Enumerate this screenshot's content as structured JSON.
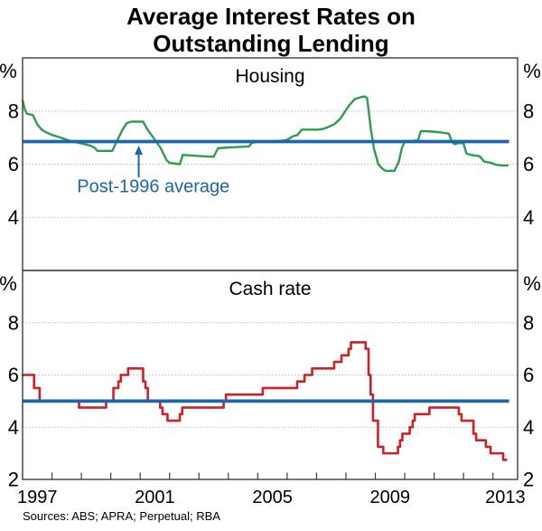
{
  "title": {
    "line1": "Average Interest Rates on",
    "line2": "Outstanding Lending"
  },
  "footer": {
    "sources": "Sources: ABS; APRA; Perpetual; RBA"
  },
  "colors": {
    "housing_line": "#2f9e48",
    "cash_line": "#cc2127",
    "average_line": "#1b67ad",
    "annotation": "#1b67ad",
    "grid": "#bdbdbd",
    "axis": "#3d3d3d",
    "text": "#000000"
  },
  "x_axis": {
    "xlim": [
      1997.0,
      2013.84
    ],
    "year_ticks": [
      1998,
      1999,
      2000,
      2001,
      2002,
      2003,
      2004,
      2005,
      2006,
      2007,
      2008,
      2009,
      2010,
      2011,
      2012,
      2013
    ],
    "labels": [
      {
        "x": 1997.5,
        "text": "1997"
      },
      {
        "x": 2001.5,
        "text": "2001"
      },
      {
        "x": 2005.5,
        "text": "2005"
      },
      {
        "x": 2009.5,
        "text": "2009"
      },
      {
        "x": 2013.42,
        "text": "2013"
      }
    ]
  },
  "chart_data": [
    {
      "type": "line",
      "title": "Housing",
      "unit_label": "%",
      "ylim": [
        2,
        10
      ],
      "yticks": [
        4,
        6,
        8
      ],
      "series": [
        {
          "id": "housing-line",
          "name": "Average interest rate on outstanding housing lending",
          "type": "line",
          "color_key": "housing_line",
          "width": 2.4,
          "points": [
            [
              1997.0,
              8.4
            ],
            [
              1997.08,
              8.05
            ],
            [
              1997.15,
              7.9
            ],
            [
              1997.35,
              7.85
            ],
            [
              1997.5,
              7.5
            ],
            [
              1997.65,
              7.3
            ],
            [
              1997.8,
              7.2
            ],
            [
              1998.0,
              7.1
            ],
            [
              1998.3,
              7.0
            ],
            [
              1998.6,
              6.88
            ],
            [
              1999.0,
              6.78
            ],
            [
              1999.3,
              6.7
            ],
            [
              1999.45,
              6.62
            ],
            [
              1999.55,
              6.5
            ],
            [
              2000.05,
              6.5
            ],
            [
              2000.2,
              6.85
            ],
            [
              2000.4,
              7.3
            ],
            [
              2000.55,
              7.55
            ],
            [
              2000.7,
              7.6
            ],
            [
              2001.1,
              7.6
            ],
            [
              2001.25,
              7.3
            ],
            [
              2001.45,
              7.0
            ],
            [
              2001.7,
              6.6
            ],
            [
              2001.9,
              6.15
            ],
            [
              2002.0,
              6.05
            ],
            [
              2002.35,
              6.0
            ],
            [
              2002.45,
              6.35
            ],
            [
              2002.7,
              6.33
            ],
            [
              2003.1,
              6.3
            ],
            [
              2003.5,
              6.28
            ],
            [
              2003.65,
              6.6
            ],
            [
              2004.0,
              6.63
            ],
            [
              2004.4,
              6.65
            ],
            [
              2004.7,
              6.67
            ],
            [
              2004.8,
              6.8
            ],
            [
              2005.0,
              6.85
            ],
            [
              2005.5,
              6.85
            ],
            [
              2005.95,
              6.9
            ],
            [
              2006.05,
              6.95
            ],
            [
              2006.2,
              7.05
            ],
            [
              2006.35,
              7.1
            ],
            [
              2006.5,
              7.3
            ],
            [
              2007.0,
              7.3
            ],
            [
              2007.2,
              7.32
            ],
            [
              2007.4,
              7.4
            ],
            [
              2007.6,
              7.5
            ],
            [
              2007.8,
              7.7
            ],
            [
              2007.95,
              7.95
            ],
            [
              2008.1,
              8.2
            ],
            [
              2008.3,
              8.45
            ],
            [
              2008.5,
              8.52
            ],
            [
              2008.62,
              8.55
            ],
            [
              2008.72,
              8.5
            ],
            [
              2008.85,
              7.3
            ],
            [
              2008.95,
              6.6
            ],
            [
              2009.1,
              6.0
            ],
            [
              2009.25,
              5.82
            ],
            [
              2009.35,
              5.75
            ],
            [
              2009.65,
              5.75
            ],
            [
              2009.8,
              6.1
            ],
            [
              2009.9,
              6.6
            ],
            [
              2010.0,
              6.85
            ],
            [
              2010.3,
              6.88
            ],
            [
              2010.45,
              6.9
            ],
            [
              2010.55,
              7.25
            ],
            [
              2010.9,
              7.23
            ],
            [
              2011.2,
              7.2
            ],
            [
              2011.5,
              7.15
            ],
            [
              2011.6,
              6.85
            ],
            [
              2011.7,
              6.75
            ],
            [
              2011.85,
              6.8
            ],
            [
              2012.0,
              6.78
            ],
            [
              2012.1,
              6.4
            ],
            [
              2012.25,
              6.35
            ],
            [
              2012.55,
              6.3
            ],
            [
              2012.7,
              6.1
            ],
            [
              2012.95,
              6.05
            ],
            [
              2013.1,
              5.98
            ],
            [
              2013.3,
              5.95
            ],
            [
              2013.5,
              5.95
            ]
          ]
        },
        {
          "id": "housing-average-line",
          "name": "Post-1996 average",
          "type": "hline",
          "color_key": "average_line",
          "value": 6.85,
          "x_start": 1997.0,
          "x_end": 2013.55
        }
      ],
      "annotation": {
        "text": "Post-1996 average",
        "x": 2000.95,
        "tip_value": 6.7,
        "tail_value": 5.5,
        "text_x": 2001.45,
        "text_value": 4.95
      }
    },
    {
      "type": "step",
      "title": "Cash rate",
      "unit_label": "%",
      "ylim": [
        2,
        10
      ],
      "yticks": [
        2,
        4,
        6,
        8
      ],
      "series": [
        {
          "id": "cash-rate-step",
          "name": "Cash rate",
          "type": "step",
          "color_key": "cash_line",
          "width": 2.6,
          "x_end": 2013.45,
          "points": [
            [
              1997.0,
              6.0
            ],
            [
              1997.39,
              5.5
            ],
            [
              1997.58,
              5.0
            ],
            [
              1998.92,
              4.75
            ],
            [
              1999.84,
              5.0
            ],
            [
              2000.09,
              5.5
            ],
            [
              2000.26,
              5.75
            ],
            [
              2000.34,
              6.0
            ],
            [
              2000.59,
              6.25
            ],
            [
              2001.1,
              5.75
            ],
            [
              2001.18,
              5.5
            ],
            [
              2001.26,
              5.0
            ],
            [
              2001.68,
              4.75
            ],
            [
              2001.76,
              4.5
            ],
            [
              2001.93,
              4.25
            ],
            [
              2002.35,
              4.5
            ],
            [
              2002.43,
              4.75
            ],
            [
              2003.84,
              5.0
            ],
            [
              2003.92,
              5.25
            ],
            [
              2005.17,
              5.5
            ],
            [
              2006.34,
              5.75
            ],
            [
              2006.59,
              6.0
            ],
            [
              2006.85,
              6.25
            ],
            [
              2007.6,
              6.5
            ],
            [
              2007.85,
              6.75
            ],
            [
              2008.09,
              7.0
            ],
            [
              2008.17,
              7.25
            ],
            [
              2008.67,
              7.0
            ],
            [
              2008.77,
              6.0
            ],
            [
              2008.84,
              5.25
            ],
            [
              2008.92,
              4.25
            ],
            [
              2009.09,
              3.25
            ],
            [
              2009.27,
              3.0
            ],
            [
              2009.77,
              3.25
            ],
            [
              2009.84,
              3.5
            ],
            [
              2009.92,
              3.75
            ],
            [
              2010.17,
              4.0
            ],
            [
              2010.27,
              4.25
            ],
            [
              2010.34,
              4.5
            ],
            [
              2010.84,
              4.75
            ],
            [
              2011.84,
              4.5
            ],
            [
              2011.93,
              4.25
            ],
            [
              2012.34,
              3.75
            ],
            [
              2012.43,
              3.5
            ],
            [
              2012.76,
              3.25
            ],
            [
              2012.92,
              3.0
            ],
            [
              2013.35,
              2.75
            ]
          ]
        },
        {
          "id": "cash-average-line",
          "name": "Post-1996 average",
          "type": "hline",
          "color_key": "average_line",
          "value": 5.0,
          "x_start": 1997.0,
          "x_end": 2013.55
        }
      ]
    }
  ]
}
